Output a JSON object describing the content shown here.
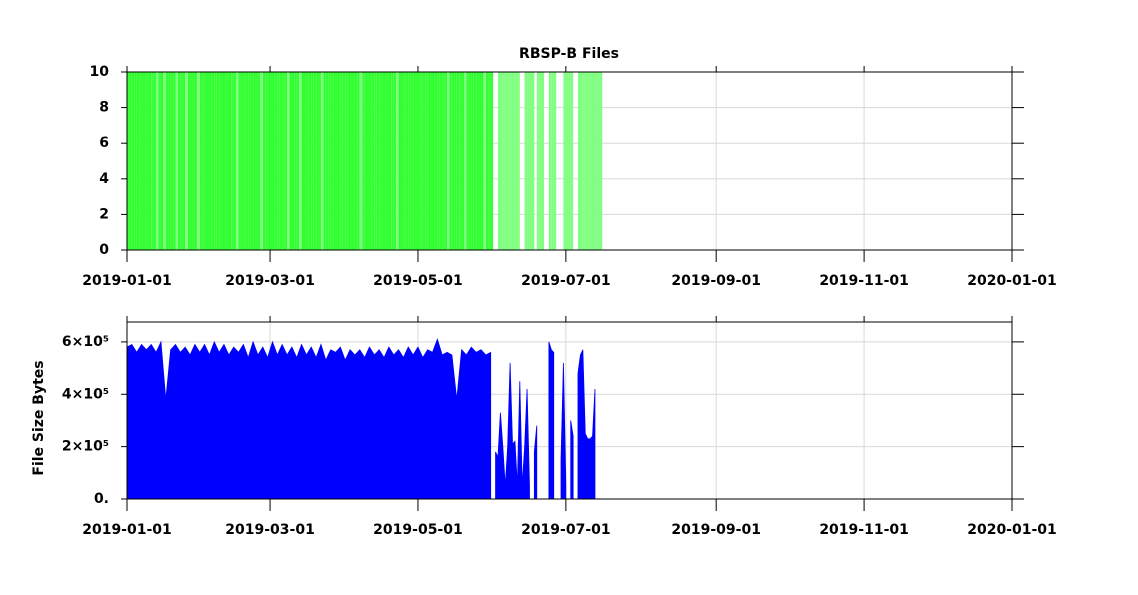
{
  "chart_data": [
    {
      "type": "bar",
      "title": "RBSP-B Files",
      "xlim": [
        "2019-01-01",
        "2020-01-01"
      ],
      "xticks": [
        "2019-01-01",
        "2019-03-01",
        "2019-05-01",
        "2019-07-01",
        "2019-09-01",
        "2019-11-01",
        "2020-01-01"
      ],
      "ylim": [
        0,
        10
      ],
      "yticks": [
        0,
        2,
        4,
        6,
        8,
        10
      ],
      "grid": true,
      "series": [
        {
          "color": "#33ff33",
          "x": [
            "2019-01-01",
            "2019-01-02",
            "2019-01-03",
            "2019-01-04",
            "2019-01-05",
            "2019-01-06",
            "2019-01-07",
            "2019-01-08",
            "2019-01-09",
            "2019-01-10",
            "2019-01-11",
            "2019-01-12",
            "2019-01-14",
            "2019-01-15",
            "2019-01-17",
            "2019-01-18",
            "2019-01-19",
            "2019-01-20",
            "2019-01-22",
            "2019-01-23",
            "2019-01-24",
            "2019-01-26",
            "2019-01-27",
            "2019-01-28",
            "2019-01-29",
            "2019-01-31",
            "2019-02-01",
            "2019-02-02",
            "2019-02-03",
            "2019-02-04",
            "2019-02-05",
            "2019-02-06",
            "2019-02-07",
            "2019-02-08",
            "2019-02-09",
            "2019-02-10",
            "2019-02-11",
            "2019-02-12",
            "2019-02-13",
            "2019-02-14",
            "2019-02-16",
            "2019-02-17",
            "2019-02-18",
            "2019-02-19",
            "2019-02-20",
            "2019-02-21",
            "2019-02-22",
            "2019-02-23",
            "2019-02-24",
            "2019-02-26",
            "2019-02-27",
            "2019-02-28",
            "2019-03-01",
            "2019-03-02",
            "2019-03-03",
            "2019-03-04",
            "2019-03-05",
            "2019-03-06",
            "2019-03-07",
            "2019-03-09",
            "2019-03-10",
            "2019-03-11",
            "2019-03-12",
            "2019-03-14",
            "2019-03-15",
            "2019-03-16",
            "2019-03-17",
            "2019-03-18",
            "2019-03-19",
            "2019-03-20",
            "2019-03-21",
            "2019-03-23",
            "2019-03-24",
            "2019-03-25",
            "2019-03-26",
            "2019-03-27",
            "2019-03-28",
            "2019-03-29",
            "2019-03-30",
            "2019-03-31",
            "2019-04-01",
            "2019-04-02",
            "2019-04-03",
            "2019-04-04",
            "2019-04-05",
            "2019-04-06",
            "2019-04-08",
            "2019-04-09",
            "2019-04-10",
            "2019-04-11",
            "2019-04-12",
            "2019-04-13",
            "2019-04-14",
            "2019-04-15",
            "2019-04-16",
            "2019-04-17",
            "2019-04-18",
            "2019-04-19",
            "2019-04-20",
            "2019-04-21",
            "2019-04-23",
            "2019-04-24",
            "2019-04-25",
            "2019-04-26",
            "2019-04-27",
            "2019-04-28",
            "2019-04-29",
            "2019-04-30",
            "2019-05-01",
            "2019-05-02",
            "2019-05-03",
            "2019-05-04",
            "2019-05-05",
            "2019-05-06",
            "2019-05-07",
            "2019-05-08",
            "2019-05-09",
            "2019-05-10",
            "2019-05-11",
            "2019-05-12",
            "2019-05-14",
            "2019-05-15",
            "2019-05-16",
            "2019-05-17",
            "2019-05-18",
            "2019-05-19",
            "2019-05-21",
            "2019-05-22",
            "2019-05-23",
            "2019-05-24",
            "2019-05-25",
            "2019-05-26",
            "2019-05-27",
            "2019-05-29",
            "2019-05-30",
            "2019-05-31"
          ],
          "values": [
            10,
            10,
            10,
            10,
            10,
            10,
            10,
            10,
            10,
            10,
            10,
            10,
            10,
            10,
            10,
            10,
            10,
            10,
            10,
            10,
            10,
            10,
            10,
            10,
            10,
            10,
            10,
            10,
            10,
            10,
            10,
            10,
            10,
            10,
            10,
            10,
            10,
            10,
            10,
            10,
            10,
            10,
            10,
            10,
            10,
            10,
            10,
            10,
            10,
            10,
            10,
            10,
            10,
            10,
            10,
            10,
            10,
            10,
            10,
            10,
            10,
            10,
            10,
            10,
            10,
            10,
            10,
            10,
            10,
            10,
            10,
            10,
            10,
            10,
            10,
            10,
            10,
            10,
            10,
            10,
            10,
            10,
            10,
            10,
            10,
            10,
            10,
            10,
            10,
            10,
            10,
            10,
            10,
            10,
            10,
            10,
            10,
            10,
            10,
            10,
            10,
            10,
            10,
            10,
            10,
            10,
            10,
            10,
            10,
            10,
            10,
            10,
            10,
            10,
            10,
            10,
            10,
            10,
            10,
            10,
            10,
            10,
            10,
            10,
            10,
            10,
            10,
            10,
            10,
            10,
            10,
            10,
            10,
            10,
            10,
            10
          ]
        },
        {
          "color": "#80ff80",
          "x": [
            "2019-01-13",
            "2019-01-16",
            "2019-01-21",
            "2019-01-25",
            "2019-01-30",
            "2019-02-15",
            "2019-02-25",
            "2019-03-08",
            "2019-03-13",
            "2019-03-22",
            "2019-04-07",
            "2019-04-22",
            "2019-05-13",
            "2019-05-20",
            "2019-05-28",
            "2019-06-03",
            "2019-06-04",
            "2019-06-05",
            "2019-06-06",
            "2019-06-07",
            "2019-06-08",
            "2019-06-09",
            "2019-06-10",
            "2019-06-11",
            "2019-06-14",
            "2019-06-15",
            "2019-06-16",
            "2019-06-17",
            "2019-06-19",
            "2019-06-20",
            "2019-06-21",
            "2019-06-24",
            "2019-06-25",
            "2019-06-26",
            "2019-06-30",
            "2019-07-01",
            "2019-07-02",
            "2019-07-03",
            "2019-07-06",
            "2019-07-07",
            "2019-07-08",
            "2019-07-09",
            "2019-07-10",
            "2019-07-11",
            "2019-07-12",
            "2019-07-13",
            "2019-07-14",
            "2019-07-15"
          ],
          "values": [
            10,
            10,
            10,
            10,
            10,
            10,
            10,
            10,
            10,
            10,
            10,
            10,
            10,
            10,
            10,
            10,
            10,
            10,
            10,
            10,
            10,
            10,
            10,
            10,
            10,
            10,
            10,
            10,
            10,
            10,
            10,
            10,
            10,
            10,
            10,
            10,
            10,
            10,
            10,
            10,
            10,
            10,
            10,
            10,
            10,
            10,
            10,
            10
          ]
        }
      ]
    },
    {
      "type": "area",
      "ylabel": "File Size Bytes",
      "xlim": [
        "2019-01-01",
        "2020-01-01"
      ],
      "xticks": [
        "2019-01-01",
        "2019-03-01",
        "2019-05-01",
        "2019-07-01",
        "2019-09-01",
        "2019-11-01",
        "2020-01-01"
      ],
      "ylim": [
        0,
        676000
      ],
      "yticks": [
        {
          "value": 0,
          "label": "0."
        },
        {
          "value": 200000,
          "label": "2×10⁵"
        },
        {
          "value": 400000,
          "label": "4×10⁵"
        },
        {
          "value": 600000,
          "label": "6×10⁵"
        }
      ],
      "grid": true,
      "series": [
        {
          "color": "#0000ff",
          "x": [
            "2019-01-01",
            "2019-01-03",
            "2019-01-05",
            "2019-01-07",
            "2019-01-09",
            "2019-01-11",
            "2019-01-13",
            "2019-01-15",
            "2019-01-17",
            "2019-01-19",
            "2019-01-21",
            "2019-01-23",
            "2019-01-25",
            "2019-01-27",
            "2019-01-29",
            "2019-01-31",
            "2019-02-02",
            "2019-02-04",
            "2019-02-06",
            "2019-02-08",
            "2019-02-10",
            "2019-02-12",
            "2019-02-14",
            "2019-02-16",
            "2019-02-18",
            "2019-02-20",
            "2019-02-22",
            "2019-02-24",
            "2019-02-26",
            "2019-02-28",
            "2019-03-02",
            "2019-03-04",
            "2019-03-06",
            "2019-03-08",
            "2019-03-10",
            "2019-03-12",
            "2019-03-14",
            "2019-03-16",
            "2019-03-18",
            "2019-03-20",
            "2019-03-22",
            "2019-03-24",
            "2019-03-26",
            "2019-03-28",
            "2019-03-30",
            "2019-04-01",
            "2019-04-03",
            "2019-04-05",
            "2019-04-07",
            "2019-04-09",
            "2019-04-11",
            "2019-04-13",
            "2019-04-15",
            "2019-04-17",
            "2019-04-19",
            "2019-04-21",
            "2019-04-23",
            "2019-04-25",
            "2019-04-27",
            "2019-04-29",
            "2019-05-01",
            "2019-05-03",
            "2019-05-05",
            "2019-05-07",
            "2019-05-09",
            "2019-05-11",
            "2019-05-13",
            "2019-05-15",
            "2019-05-17",
            "2019-05-19",
            "2019-05-21",
            "2019-05-23",
            "2019-05-25",
            "2019-05-27",
            "2019-05-29",
            "2019-05-31",
            "2019-06-01",
            "2019-06-02",
            "2019-06-03",
            "2019-06-04",
            "2019-06-05",
            "2019-06-06",
            "2019-06-07",
            "2019-06-08",
            "2019-06-09",
            "2019-06-10",
            "2019-06-11",
            "2019-06-12",
            "2019-06-13",
            "2019-06-14",
            "2019-06-15",
            "2019-06-16",
            "2019-06-17",
            "2019-06-18",
            "2019-06-19",
            "2019-06-20",
            "2019-06-24",
            "2019-06-25",
            "2019-06-26",
            "2019-06-27",
            "2019-06-29",
            "2019-06-30",
            "2019-07-01",
            "2019-07-02",
            "2019-07-03",
            "2019-07-04",
            "2019-07-05",
            "2019-07-06",
            "2019-07-07",
            "2019-07-08",
            "2019-07-09",
            "2019-07-10",
            "2019-07-11",
            "2019-07-12",
            "2019-07-13"
          ],
          "values": [
            580000,
            590000,
            560000,
            590000,
            570000,
            590000,
            560000,
            600000,
            380000,
            570000,
            590000,
            560000,
            580000,
            550000,
            590000,
            560000,
            590000,
            550000,
            600000,
            560000,
            590000,
            550000,
            580000,
            560000,
            590000,
            540000,
            600000,
            550000,
            580000,
            540000,
            600000,
            550000,
            590000,
            550000,
            580000,
            540000,
            590000,
            550000,
            580000,
            540000,
            590000,
            530000,
            570000,
            560000,
            580000,
            530000,
            570000,
            550000,
            570000,
            540000,
            580000,
            550000,
            570000,
            540000,
            580000,
            550000,
            570000,
            540000,
            580000,
            550000,
            580000,
            540000,
            570000,
            560000,
            610000,
            550000,
            560000,
            550000,
            380000,
            570000,
            550000,
            580000,
            560000,
            570000,
            550000,
            560000,
            null,
            180000,
            160000,
            330000,
            200000,
            50000,
            200000,
            520000,
            210000,
            220000,
            50000,
            450000,
            50000,
            200000,
            420000,
            50000,
            null,
            180000,
            280000,
            null,
            600000,
            570000,
            560000,
            null,
            150000,
            520000,
            50000,
            null,
            300000,
            240000,
            null,
            480000,
            550000,
            570000,
            250000,
            230000,
            230000,
            240000,
            420000
          ]
        }
      ]
    }
  ]
}
